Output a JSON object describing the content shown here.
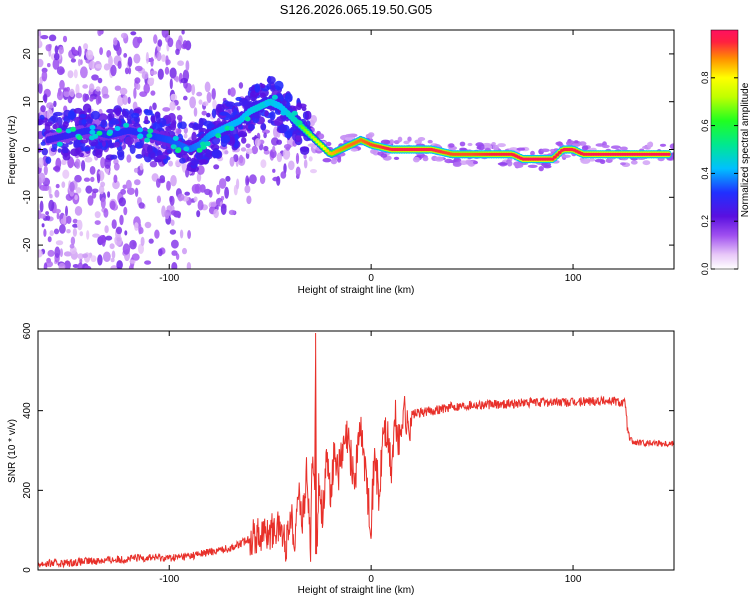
{
  "title": "S126.2026.065.19.50.G05",
  "chart_data": [
    {
      "type": "heatmap",
      "name": "spectrogram",
      "xlabel": "Height of straight line (km)",
      "ylabel": "Frequency (Hz)",
      "xlim": [
        -165,
        150
      ],
      "ylim": [
        -25,
        25
      ],
      "xticks": [
        -100,
        0,
        100
      ],
      "xtick_labels": [
        "-100",
        "0",
        "100"
      ],
      "yticks": [
        20,
        10,
        0,
        -10,
        -20
      ],
      "ytick_labels": [
        "20",
        "10",
        "0",
        "-10",
        "-20"
      ],
      "colorbar": {
        "label": "Normalized spectral amplitude",
        "range": [
          0,
          1
        ],
        "ticks": [
          0.0,
          0.2,
          0.4,
          0.6,
          0.8
        ],
        "tick_labels": [
          "0.0",
          "0.2",
          "0.4",
          "0.6",
          "0.8"
        ]
      },
      "ridge": {
        "x": [
          -160,
          -150,
          -140,
          -130,
          -120,
          -110,
          -100,
          -90,
          -85,
          -80,
          -75,
          -70,
          -65,
          -60,
          -55,
          -50,
          -45,
          -40,
          -35,
          -30,
          -25,
          -20,
          -15,
          -10,
          -5,
          0,
          10,
          20,
          30,
          40,
          50,
          60,
          70,
          75,
          80,
          85,
          90,
          95,
          100,
          105,
          110,
          120,
          130,
          140,
          148
        ],
        "y": [
          2,
          3,
          4,
          3,
          4,
          3,
          2,
          0,
          1,
          3,
          4,
          5,
          6,
          8,
          9,
          10,
          9,
          7,
          5,
          3,
          1,
          -1,
          0,
          1,
          2,
          1,
          0,
          0,
          0,
          -1,
          -1,
          -1,
          -1,
          -2,
          -2,
          -2,
          -2,
          0,
          0,
          -1,
          -1,
          -1,
          -1,
          -1,
          -1
        ],
        "amplitude": [
          0.35,
          0.38,
          0.4,
          0.42,
          0.4,
          0.42,
          0.45,
          0.48,
          0.5,
          0.52,
          0.55,
          0.55,
          0.55,
          0.58,
          0.6,
          0.6,
          0.55,
          0.62,
          0.65,
          0.7,
          0.78,
          0.85,
          0.88,
          0.9,
          0.9,
          0.92,
          0.95,
          0.95,
          0.95,
          0.92,
          0.92,
          0.95,
          0.95,
          0.98,
          0.98,
          0.98,
          0.95,
          0.95,
          0.95,
          0.95,
          0.98,
          0.98,
          0.98,
          0.98,
          0.98
        ]
      }
    },
    {
      "type": "line",
      "name": "snr",
      "xlabel": "Height of straight line (km)",
      "ylabel": "SNR (10 * v/v)",
      "xlim": [
        -165,
        150
      ],
      "ylim": [
        0,
        600
      ],
      "xticks": [
        -100,
        0,
        100
      ],
      "xtick_labels": [
        "-100",
        "0",
        "100"
      ],
      "yticks": [
        0,
        200,
        400,
        600
      ],
      "ytick_labels": [
        "0",
        "200",
        "400",
        "600"
      ],
      "color": "#e8302a",
      "series": {
        "x": [
          -165,
          -150,
          -140,
          -130,
          -120,
          -110,
          -100,
          -90,
          -80,
          -70,
          -65,
          -60,
          -55,
          -50,
          -45,
          -42,
          -40,
          -38,
          -36,
          -34,
          -32,
          -30,
          -29,
          -28,
          -27.5,
          -27,
          -26,
          -24,
          -22,
          -20,
          -18,
          -16,
          -14,
          -12,
          -10,
          -8,
          -6,
          -4,
          -2,
          0,
          2,
          4,
          6,
          8,
          10,
          12,
          14,
          16,
          18,
          20,
          25,
          30,
          40,
          50,
          60,
          70,
          80,
          90,
          100,
          110,
          120,
          126,
          127,
          128,
          130,
          135,
          140,
          145,
          150
        ],
        "y": [
          15,
          18,
          22,
          25,
          28,
          32,
          30,
          35,
          45,
          55,
          65,
          80,
          90,
          95,
          110,
          60,
          150,
          80,
          200,
          120,
          240,
          60,
          320,
          170,
          595,
          40,
          210,
          150,
          260,
          200,
          300,
          250,
          290,
          330,
          280,
          220,
          350,
          320,
          200,
          130,
          300,
          160,
          360,
          330,
          250,
          380,
          310,
          420,
          350,
          390,
          395,
          400,
          410,
          415,
          415,
          418,
          420,
          422,
          420,
          425,
          425,
          418,
          350,
          330,
          320,
          318,
          320,
          318,
          318
        ]
      }
    }
  ]
}
